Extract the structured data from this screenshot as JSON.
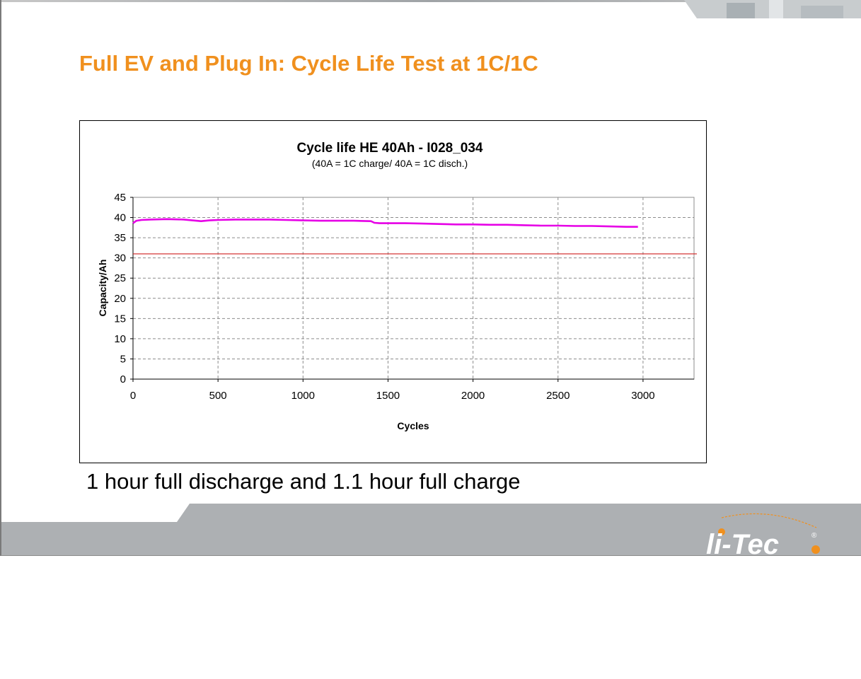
{
  "slide": {
    "title": "Full EV and Plug In:  Cycle Life Test at 1C/1C",
    "footer_text": "1 hour full discharge and 1.1 hour full charge",
    "logo_text": "li-Tec",
    "accent_color": "#f0901e",
    "footer_color": "#adb0b3"
  },
  "chart_data": {
    "type": "line",
    "title": "Cycle life HE 40Ah - I028_034",
    "subtitle": "(40A = 1C charge/ 40A = 1C disch.)",
    "xlabel": "Cycles",
    "ylabel": "Capacity/Ah",
    "xlim": [
      0,
      3300
    ],
    "ylim": [
      0,
      45
    ],
    "xticks": [
      0,
      500,
      1000,
      1500,
      2000,
      2500,
      3000
    ],
    "yticks": [
      0,
      5,
      10,
      15,
      20,
      25,
      30,
      35,
      40,
      45
    ],
    "grid": true,
    "legend": "none",
    "series": [
      {
        "color": "#e600e6",
        "x": [
          0,
          20,
          50,
          100,
          200,
          300,
          400,
          450,
          500,
          600,
          700,
          800,
          900,
          1000,
          1100,
          1200,
          1300,
          1400,
          1420,
          1450,
          1500,
          1600,
          1700,
          1800,
          1900,
          2000,
          2100,
          2200,
          2300,
          2400,
          2500,
          2600,
          2700,
          2800,
          2900,
          2970
        ],
        "values": [
          38.6,
          39.2,
          39.4,
          39.5,
          39.6,
          39.5,
          39.1,
          39.3,
          39.4,
          39.5,
          39.5,
          39.5,
          39.4,
          39.3,
          39.2,
          39.2,
          39.2,
          39.1,
          38.7,
          38.6,
          38.6,
          38.6,
          38.5,
          38.4,
          38.3,
          38.3,
          38.2,
          38.2,
          38.1,
          38.0,
          38.0,
          37.9,
          37.9,
          37.8,
          37.7,
          37.7
        ]
      }
    ],
    "reference_line": {
      "y": 31,
      "color": "#d02020"
    }
  }
}
